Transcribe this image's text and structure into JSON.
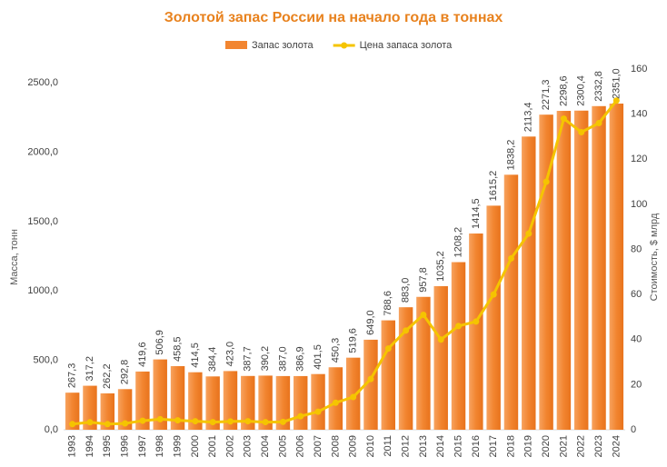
{
  "chart_data": {
    "type": "bar",
    "title": "Золотой запас России на начало года в тоннах",
    "y_label": "Масса, тонн",
    "y2_label": "Стоимость, $ млрд",
    "categories": [
      "1993",
      "1994",
      "1995",
      "1996",
      "1997",
      "1998",
      "1999",
      "2000",
      "2001",
      "2002",
      "2003",
      "2004",
      "2005",
      "2006",
      "2007",
      "2008",
      "2009",
      "2010",
      "2011",
      "2012",
      "2013",
      "2014",
      "2015",
      "2016",
      "2017",
      "2018",
      "2019",
      "2020",
      "2021",
      "2022",
      "2023",
      "2024"
    ],
    "series": [
      {
        "name": "Запас золота",
        "type": "bar",
        "color": "#f28530",
        "values": [
          267.3,
          317.2,
          262.2,
          292.8,
          419.6,
          506.9,
          458.5,
          414.5,
          384.4,
          423.0,
          387.7,
          390.2,
          387.0,
          386.9,
          401.5,
          450.3,
          519.6,
          649.0,
          788.6,
          883.0,
          957.8,
          1035.2,
          1208.2,
          1414.5,
          1615.2,
          1838.2,
          2113.4,
          2271.3,
          2298.6,
          2300.4,
          2332.8,
          2351.0
        ],
        "value_labels": [
          "267,3",
          "317,2",
          "262,2",
          "292,8",
          "419,6",
          "506,9",
          "458,5",
          "414,5",
          "384,4",
          "423,0",
          "387,7",
          "390,2",
          "387,0",
          "386,9",
          "401,5",
          "450,3",
          "519,6",
          "649,0",
          "788,6",
          "883,0",
          "957,8",
          "1035,2",
          "1208,2",
          "1414,5",
          "1615,2",
          "1838,2",
          "2113,4",
          "2271,3",
          "2298,6",
          "2300,4",
          "2332,8",
          "2351,0"
        ]
      },
      {
        "name": "Цена запаса золота",
        "type": "line",
        "axis": "y2",
        "color": "#f5c400",
        "values": [
          2.5,
          3.3,
          2.5,
          2.8,
          4,
          4.7,
          4.2,
          3.8,
          3.4,
          3.7,
          3.8,
          3.4,
          3.5,
          6,
          8,
          12,
          14.5,
          22.5,
          36,
          44,
          51,
          40,
          46,
          48,
          60,
          76,
          87,
          110,
          138,
          132,
          136,
          146
        ]
      }
    ],
    "ylim": [
      0,
      2600
    ],
    "yticks": [
      {
        "value": 0,
        "label": "0,0"
      },
      {
        "value": 500,
        "label": "500,0"
      },
      {
        "value": 1000,
        "label": "1000,0"
      },
      {
        "value": 1500,
        "label": "1500,0"
      },
      {
        "value": 2000,
        "label": "2000,0"
      },
      {
        "value": 2500,
        "label": "2500,0"
      }
    ],
    "y2lim": [
      0,
      160
    ],
    "y2ticks": [
      0,
      20,
      40,
      60,
      80,
      100,
      120,
      140,
      160
    ],
    "legend": "top"
  }
}
